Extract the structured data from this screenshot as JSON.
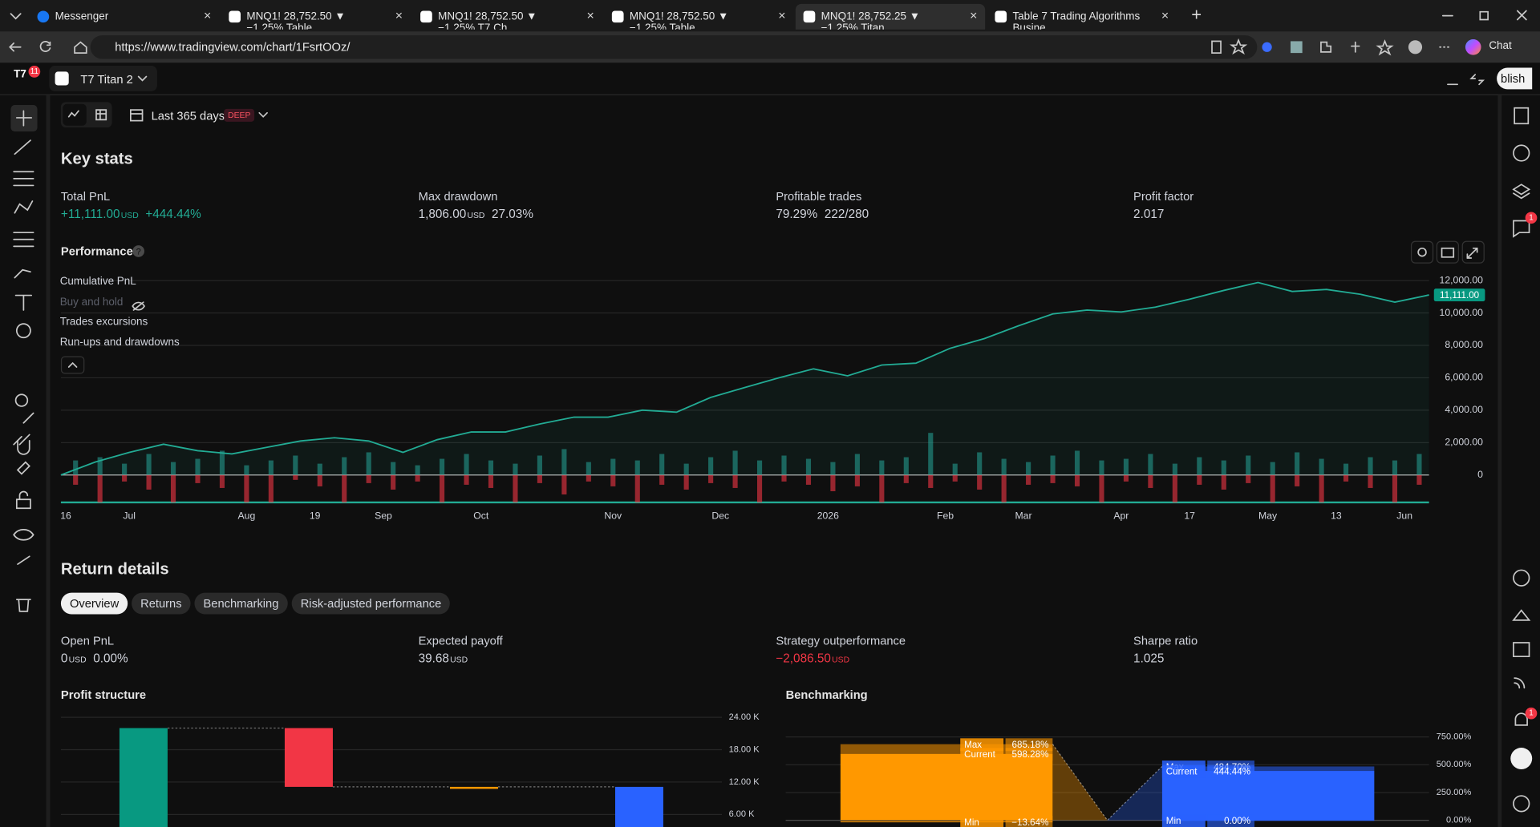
{
  "browser": {
    "tabs": [
      "Messenger",
      "MNQ1! 28,752.50 ▼ −1.25% Table",
      "MNQ1! 28,752.50 ▼ −1.25% T7 Ch",
      "MNQ1! 28,752.50 ▼ −1.25% Table",
      "MNQ1! 28,752.25 ▼ −1.25% Titan",
      "Table 7 Trading Algorithms Busine"
    ],
    "active_tab": 4,
    "url": "https://www.tradingview.com/chart/1FsrtOOz/",
    "chat": "Chat"
  },
  "app": {
    "badge": "11",
    "layout_name": "T7 Titan 2",
    "publish": "blish",
    "range": "Last 365 days",
    "range_tag": "DEEP",
    "notification_badges": [
      "1",
      "1"
    ]
  },
  "key_stats": {
    "title": "Key stats",
    "items": [
      {
        "label": "Total PnL",
        "value": "+11,111.00",
        "unit": "USD",
        "extra": "+444.44%",
        "color": "#22ab94"
      },
      {
        "label": "Max drawdown",
        "value": "1,806.00",
        "unit": "USD",
        "extra": "27.03%"
      },
      {
        "label": "Profitable trades",
        "value": "79.29%",
        "extra": "222/280"
      },
      {
        "label": "Profit factor",
        "value": "2.017"
      }
    ]
  },
  "return_details": {
    "title": "Return details",
    "tabs": [
      "Overview",
      "Returns",
      "Benchmarking",
      "Risk-adjusted performance"
    ],
    "active_tab": 0,
    "items": [
      {
        "label": "Open PnL",
        "value": "0",
        "unit": "USD",
        "extra": "0.00%"
      },
      {
        "label": "Expected payoff",
        "value": "39.68",
        "unit": "USD"
      },
      {
        "label": "Strategy outperformance",
        "value": "−2,086.50",
        "unit": "USD",
        "color": "#f23645"
      },
      {
        "label": "Sharpe ratio",
        "value": "1.025"
      }
    ]
  },
  "chart_data": [
    {
      "type": "line",
      "title": "Performance",
      "grid": true,
      "xlim": [
        0,
        280
      ],
      "xticks": [
        {
          "value": 1,
          "label": "16"
        },
        {
          "value": 14,
          "label": "Jul"
        },
        {
          "value": 38,
          "label": "Aug"
        },
        {
          "value": 52,
          "label": "19"
        },
        {
          "value": 66,
          "label": "Sep"
        },
        {
          "value": 86,
          "label": "Oct"
        },
        {
          "value": 113,
          "label": "Nov"
        },
        {
          "value": 135,
          "label": "Dec"
        },
        {
          "value": 157,
          "label": "2026"
        },
        {
          "value": 181,
          "label": "Feb"
        },
        {
          "value": 197,
          "label": "Mar"
        },
        {
          "value": 217,
          "label": "Apr"
        },
        {
          "value": 231,
          "label": "17"
        },
        {
          "value": 247,
          "label": "May"
        },
        {
          "value": 261,
          "label": "13"
        },
        {
          "value": 275,
          "label": "Jun"
        }
      ],
      "ylim": [
        -1750,
        12600
      ],
      "yticks": [
        {
          "value": 12000,
          "label": "12,000.00"
        },
        {
          "value": 10000,
          "label": "10,000.00"
        },
        {
          "value": 8000,
          "label": "8,000.00"
        },
        {
          "value": 6000,
          "label": "6,000.00"
        },
        {
          "value": 4000,
          "label": "4,000.00"
        },
        {
          "value": 2000,
          "label": "2,000.00"
        },
        0
      ],
      "series": [
        {
          "name": "Cumulative PnL",
          "color": "#22ab94",
          "end_label": "11,111.00",
          "x": [
            0,
            7,
            14,
            21,
            28,
            35,
            42,
            49,
            56,
            63,
            70,
            77,
            84,
            91,
            98,
            105,
            112,
            119,
            126,
            133,
            140,
            147,
            154,
            161,
            168,
            175,
            182,
            189,
            196,
            203,
            210,
            217,
            224,
            231,
            238,
            245,
            252,
            259,
            266,
            273,
            280
          ],
          "values": [
            0,
            800,
            1400,
            1900,
            1500,
            1300,
            1700,
            2100,
            2300,
            2100,
            1400,
            2180,
            2660,
            2660,
            3150,
            3575,
            3575,
            4000,
            3880,
            4790,
            5400,
            6000,
            6550,
            6120,
            6790,
            6900,
            7820,
            8420,
            9210,
            9940,
            10180,
            10060,
            10360,
            10850,
            11390,
            11880,
            11330,
            11450,
            11150,
            10670,
            11111
          ]
        },
        {
          "name": "Buy and hold",
          "hidden": true
        },
        {
          "name": "Trades excursions"
        },
        {
          "name": "Run-ups and drawdowns",
          "colors": [
            "#26a69a",
            "#f23645"
          ],
          "x": [
            3,
            8,
            13,
            18,
            23,
            28,
            33,
            38,
            43,
            48,
            53,
            58,
            63,
            68,
            73,
            78,
            83,
            88,
            93,
            98,
            103,
            108,
            113,
            118,
            123,
            128,
            133,
            138,
            143,
            148,
            153,
            158,
            163,
            168,
            173,
            178,
            183,
            188,
            193,
            198,
            203,
            208,
            213,
            218,
            223,
            228,
            233,
            238,
            243,
            248,
            253,
            258,
            263,
            268,
            273,
            278
          ],
          "runups": [
            900,
            1100,
            700,
            1300,
            800,
            1000,
            1500,
            600,
            900,
            1200,
            700,
            1100,
            1400,
            800,
            600,
            1000,
            1300,
            900,
            700,
            1200,
            1600,
            800,
            1000,
            900,
            1300,
            700,
            1100,
            1500,
            900,
            1200,
            1000,
            800,
            1300,
            900,
            1100,
            2600,
            700,
            1400,
            1000,
            800,
            1200,
            1500,
            900,
            1000,
            1300,
            700,
            1100,
            900,
            1200,
            800,
            1400,
            1000,
            700,
            1100,
            900,
            1300
          ],
          "drawdowns": [
            -600,
            -1700,
            -400,
            -900,
            -1700,
            -500,
            -800,
            -1700,
            -1700,
            -300,
            -700,
            -1700,
            -500,
            -900,
            -400,
            -1700,
            -600,
            -800,
            -1700,
            -500,
            -1200,
            -400,
            -700,
            -1700,
            -600,
            -900,
            -500,
            -800,
            -1700,
            -400,
            -600,
            -1000,
            -700,
            -1700,
            -500,
            -800,
            -400,
            -900,
            -1700,
            -600,
            -500,
            -700,
            -1700,
            -400,
            -800,
            -1700,
            -600,
            -900,
            -500,
            -1700,
            -700,
            -1700,
            -400,
            -800,
            -1700,
            -600
          ]
        }
      ]
    },
    {
      "type": "waterfall",
      "title": "Profit structure",
      "categories": [
        null,
        null,
        null,
        null
      ],
      "values": [
        22000,
        -10889,
        0,
        11111
      ],
      "totals": [
        false,
        false,
        false,
        true
      ],
      "colors": [
        "#089981",
        "#f23645",
        "#ff9800",
        "#2962ff"
      ],
      "ylim": [
        0,
        25000
      ],
      "yticks": [
        {
          "value": 24000,
          "label": "24.00 K"
        },
        {
          "value": 18000,
          "label": "18.00 K"
        },
        {
          "value": 12000,
          "label": "12.00 K"
        },
        {
          "value": 6000,
          "label": "6.00 K"
        }
      ],
      "grid": true
    },
    {
      "type": "range_bar",
      "title": "Benchmarking",
      "stat_labels": [
        "Max",
        "Current",
        "Min"
      ],
      "ylim": [
        -60,
        800
      ],
      "yticks": [
        {
          "value": 750,
          "label": "750.00%"
        },
        {
          "value": 500,
          "label": "500.00%"
        },
        {
          "value": 250,
          "label": "250.00%"
        },
        {
          "value": 0,
          "label": "0.00%"
        }
      ],
      "grid": true,
      "series": [
        {
          "color": "#ff9800",
          "values": [
            685.18,
            598.28,
            -13.64
          ],
          "value_labels": [
            "685.18%",
            "598.28%",
            "−13.64%"
          ]
        },
        {
          "color": "#2962ff",
          "values": [
            484.7,
            444.44,
            0
          ],
          "value_labels": [
            "484.70%",
            "444.44%",
            "0.00%"
          ]
        }
      ]
    }
  ]
}
